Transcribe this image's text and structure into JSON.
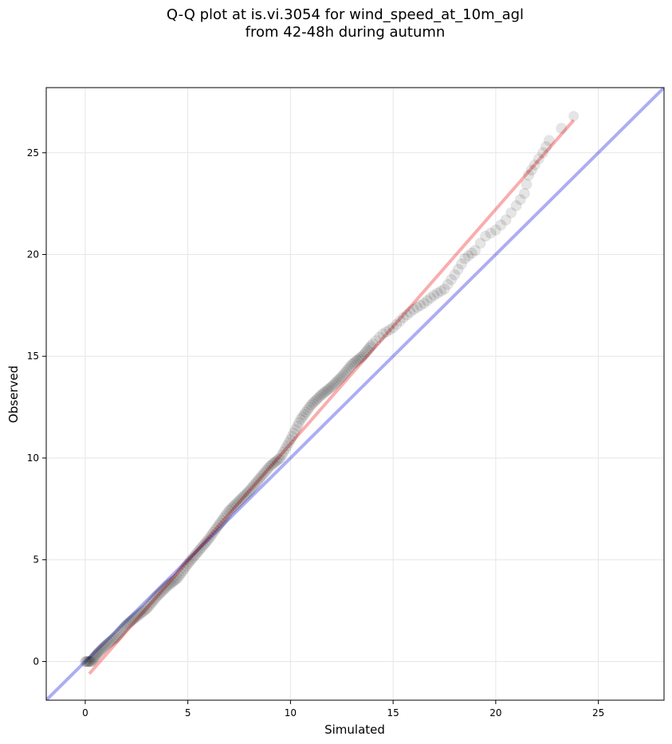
{
  "chart_data": {
    "type": "scatter",
    "title": "Q-Q plot at is.vi.3054 for wind_speed_at_10m_agl",
    "subtitle": "from 42-48h during autumn",
    "xlabel": "Simulated",
    "ylabel": "Observed",
    "xlim": [
      -1.9,
      28.2
    ],
    "ylim": [
      -1.9,
      28.2
    ],
    "xticks": [
      0,
      5,
      10,
      15,
      20,
      25
    ],
    "yticks": [
      0,
      5,
      10,
      15,
      20,
      25
    ],
    "xtick_labels": [
      "0",
      "5",
      "10",
      "15",
      "20",
      "25"
    ],
    "ytick_labels": [
      "0",
      "5",
      "10",
      "15",
      "20",
      "25"
    ],
    "grid": true,
    "colors": {
      "points": "#000000",
      "identity_line": "#0000dd",
      "fit_line": "#ee0000",
      "grid": "#e6e6e6"
    },
    "reference_line": {
      "type": "identity",
      "x": [
        -1.9,
        28.2
      ],
      "y": [
        -1.9,
        28.2
      ]
    },
    "fit_line": {
      "x": [
        0.2,
        23.8
      ],
      "y": [
        -0.6,
        26.6
      ]
    },
    "quantile_curve": [
      [
        0.0,
        0.0
      ],
      [
        0.3,
        0.0
      ],
      [
        0.6,
        0.4
      ],
      [
        1.0,
        0.8
      ],
      [
        1.5,
        1.2
      ],
      [
        2.0,
        1.8
      ],
      [
        2.5,
        2.2
      ],
      [
        3.0,
        2.6
      ],
      [
        3.5,
        3.2
      ],
      [
        4.0,
        3.7
      ],
      [
        4.5,
        4.1
      ],
      [
        5.0,
        4.8
      ],
      [
        5.5,
        5.4
      ],
      [
        6.0,
        6.0
      ],
      [
        6.5,
        6.7
      ],
      [
        7.0,
        7.4
      ],
      [
        7.5,
        7.9
      ],
      [
        8.0,
        8.4
      ],
      [
        8.5,
        9.0
      ],
      [
        9.0,
        9.6
      ],
      [
        9.5,
        10.0
      ],
      [
        10.0,
        10.9
      ],
      [
        10.5,
        11.9
      ],
      [
        11.0,
        12.6
      ],
      [
        11.5,
        13.1
      ],
      [
        12.0,
        13.5
      ],
      [
        12.5,
        14.0
      ],
      [
        13.0,
        14.6
      ],
      [
        13.5,
        15.0
      ],
      [
        14.0,
        15.6
      ],
      [
        14.5,
        16.1
      ],
      [
        15.0,
        16.4
      ],
      [
        15.5,
        16.9
      ],
      [
        16.0,
        17.3
      ],
      [
        16.5,
        17.6
      ],
      [
        17.0,
        18.0
      ],
      [
        17.5,
        18.3
      ],
      [
        18.0,
        19.0
      ],
      [
        18.5,
        19.8
      ],
      [
        19.0,
        20.2
      ],
      [
        19.5,
        20.9
      ],
      [
        20.0,
        21.2
      ],
      [
        20.5,
        21.7
      ],
      [
        21.0,
        22.4
      ],
      [
        21.4,
        23.0
      ],
      [
        21.6,
        23.9
      ],
      [
        21.9,
        24.4
      ],
      [
        22.3,
        25.0
      ],
      [
        22.6,
        25.6
      ],
      [
        23.8,
        26.8
      ]
    ]
  }
}
